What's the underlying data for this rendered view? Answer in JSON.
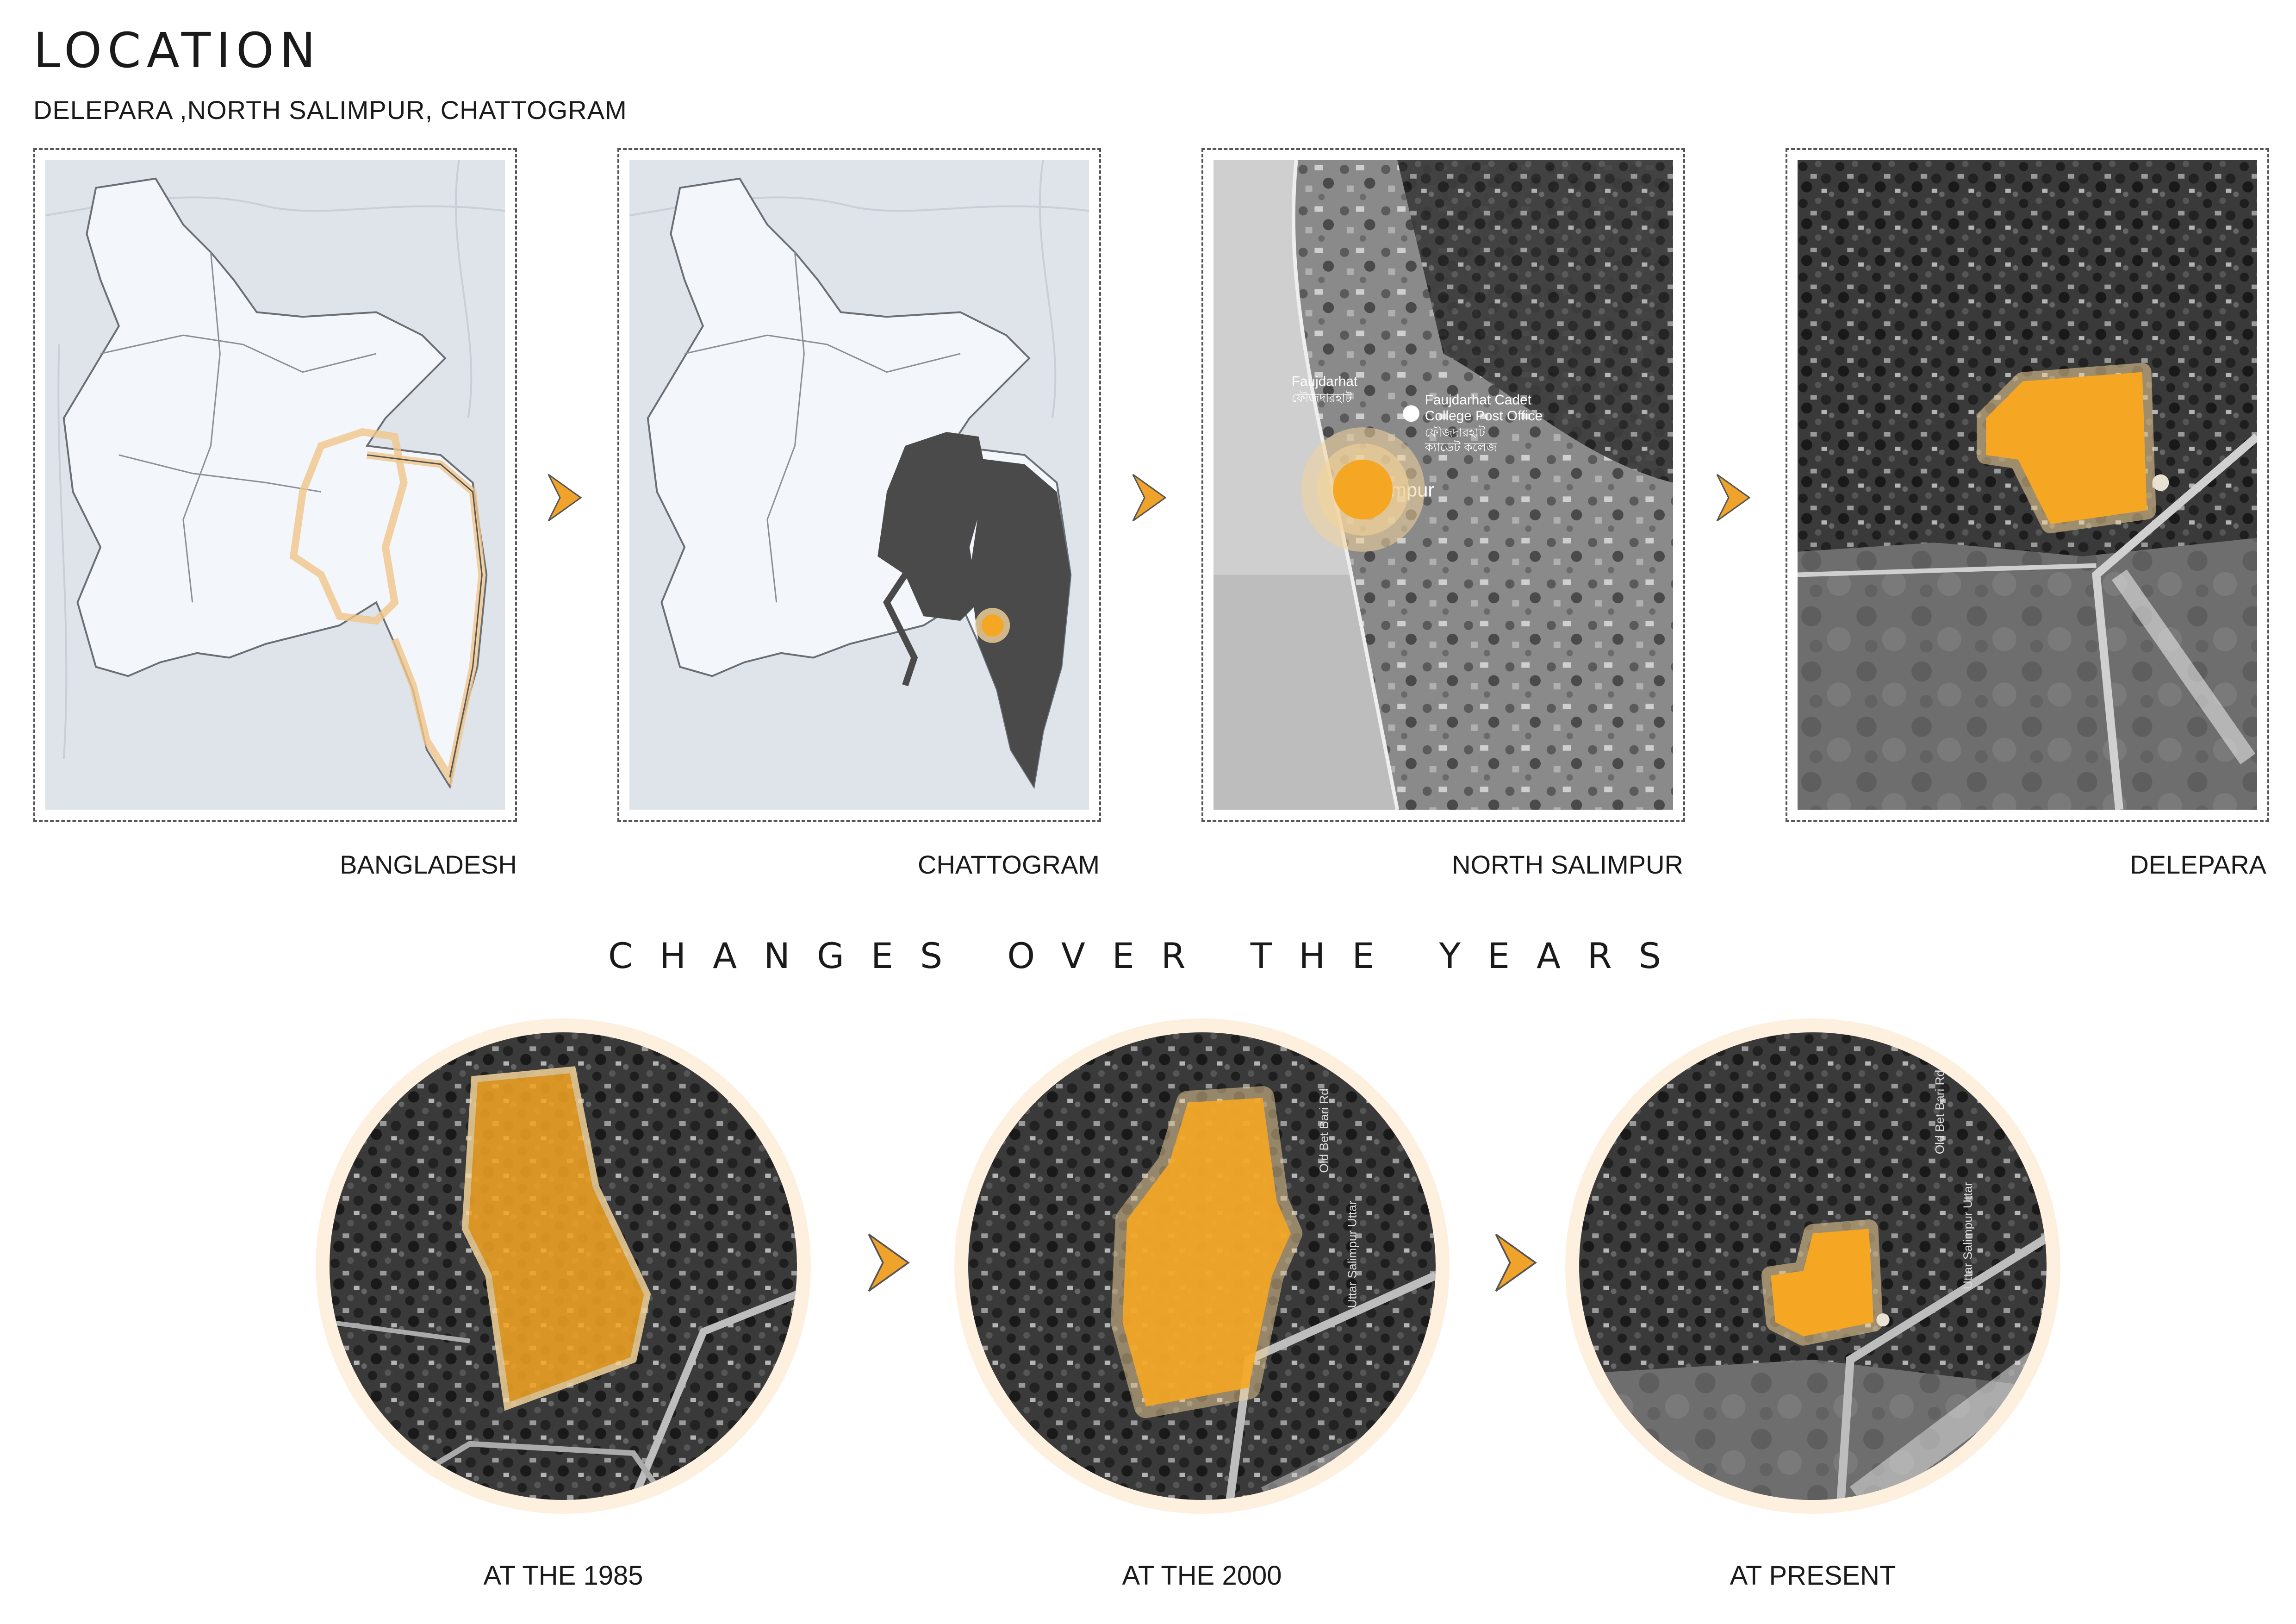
{
  "header": {
    "title": "LOCATION",
    "subtitle": "DELEPARA ,NORTH SALIMPUR, CHATTOGRAM"
  },
  "location_panels": [
    {
      "label": "BANGLADESH"
    },
    {
      "label": "CHATTOGRAM"
    },
    {
      "label": "NORTH SALIMPUR"
    },
    {
      "label": "DELEPARA"
    }
  ],
  "map_labels": {
    "place_1": "Faujdarhat",
    "place_1_local": "ফৌজদারহাট",
    "place_2_line1": "Faujdarhat Cadet",
    "place_2_line2": "College Post Office",
    "place_2_local_line1": "ফৌজদারহাট",
    "place_2_local_line2": "ক্যাডেট কলেজ",
    "area_fragment": "mpur",
    "road_label_1": "Old Bet Bari Rd",
    "road_label_2": "Uttar Salimpur Uttar"
  },
  "changes": {
    "title": "CHANGES OVER THE YEARS",
    "items": [
      {
        "label": "AT THE 1985"
      },
      {
        "label": "AT THE 2000"
      },
      {
        "label": "AT PRESENT"
      }
    ]
  },
  "colors": {
    "accent": "#f5a623",
    "accent_glow": "#f3d39a",
    "map_land": "#f3f6fa",
    "map_sea": "#dfe4ea",
    "map_highlight_dark": "#4a4a4a",
    "arrow": "#f0a32a"
  },
  "icons": {
    "arrow": "chevron-right-icon"
  }
}
